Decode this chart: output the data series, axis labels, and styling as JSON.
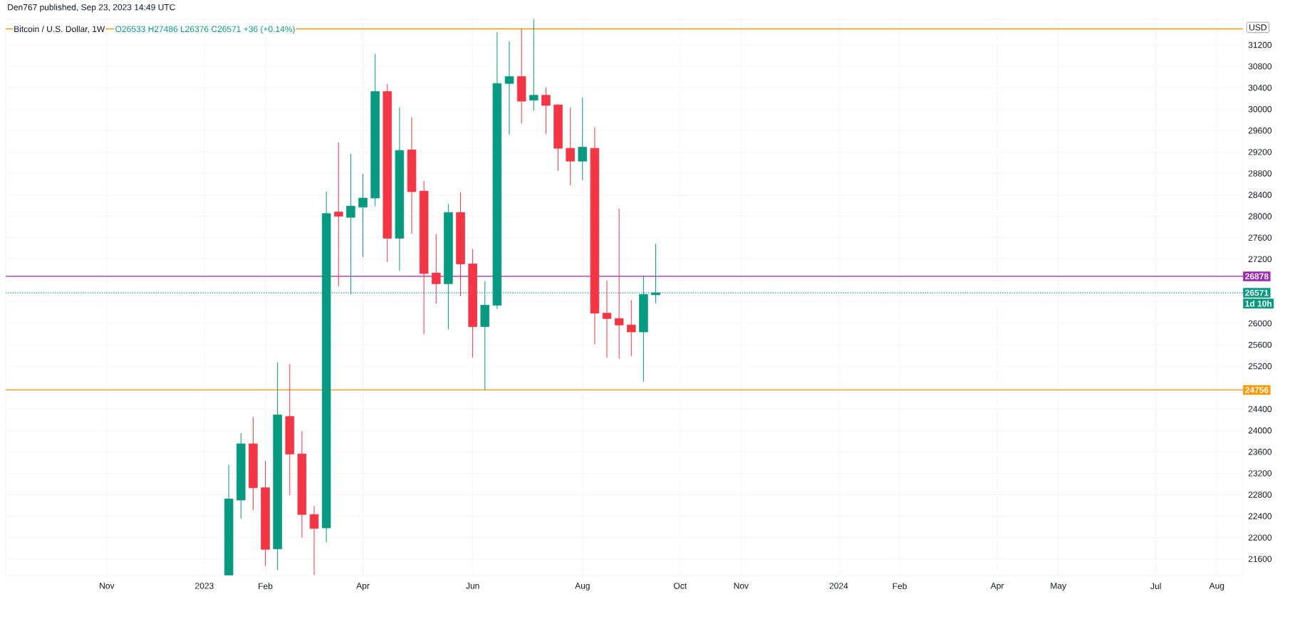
{
  "chart_data": {
    "type": "candlestick",
    "title": "Den767 published, Sep 23, 2023 14:49 UTC",
    "subtitle": "Bitcoin / U.S. Dollar, 1W",
    "ylabel": "USD",
    "annotations": [
      "O26533 H27486 L26376 C26571 +36 (+0.14%)",
      "1d 10h"
    ],
    "x": [
      "2023-01-16",
      "2023-01-23",
      "2023-01-30",
      "2023-02-06",
      "2023-02-13",
      "2023-02-20",
      "2023-02-27",
      "2023-03-06",
      "2023-03-13",
      "2023-03-20",
      "2023-03-27",
      "2023-04-03",
      "2023-04-10",
      "2023-04-17",
      "2023-04-24",
      "2023-05-01",
      "2023-05-08",
      "2023-05-15",
      "2023-05-22",
      "2023-05-29",
      "2023-06-05",
      "2023-06-12",
      "2023-06-19",
      "2023-06-26",
      "2023-07-03",
      "2023-07-10",
      "2023-07-17",
      "2023-07-24",
      "2023-07-31",
      "2023-08-07",
      "2023-08-14",
      "2023-08-21",
      "2023-08-28",
      "2023-09-04",
      "2023-09-11",
      "2023-09-18"
    ],
    "ohlc": [
      [
        21300,
        23360,
        21300,
        22720
      ],
      [
        22700,
        23950,
        22350,
        23750
      ],
      [
        23750,
        24250,
        22510,
        22930
      ],
      [
        22930,
        23430,
        21470,
        21780
      ],
      [
        21790,
        25270,
        21390,
        24290
      ],
      [
        24260,
        25240,
        22790,
        23560
      ],
      [
        23560,
        23990,
        22000,
        22430
      ],
      [
        22430,
        22590,
        21300,
        22170
      ],
      [
        22180,
        28460,
        21910,
        28050
      ],
      [
        28080,
        29380,
        26690,
        28000
      ],
      [
        27980,
        29170,
        26540,
        28190
      ],
      [
        28170,
        28790,
        27240,
        28340
      ],
      [
        28340,
        31030,
        28190,
        30330
      ],
      [
        30330,
        30470,
        27140,
        27590
      ],
      [
        27590,
        30030,
        26980,
        29230
      ],
      [
        29240,
        29850,
        27670,
        28460
      ],
      [
        28470,
        28660,
        25800,
        26930
      ],
      [
        26940,
        27670,
        26370,
        26740
      ],
      [
        26740,
        28230,
        25890,
        28070
      ],
      [
        28070,
        28450,
        26510,
        27110
      ],
      [
        27110,
        27390,
        25360,
        25940
      ],
      [
        25940,
        26790,
        24760,
        26340
      ],
      [
        26340,
        31440,
        26270,
        30480
      ],
      [
        30480,
        31270,
        29520,
        30610
      ],
      [
        30610,
        31500,
        29730,
        30150
      ],
      [
        30170,
        31680,
        29970,
        30260
      ],
      [
        30260,
        30410,
        29530,
        30070
      ],
      [
        30080,
        30090,
        28850,
        29270
      ],
      [
        29270,
        30030,
        28580,
        29030
      ],
      [
        29030,
        30220,
        28670,
        29290
      ],
      [
        29270,
        29660,
        25610,
        26190
      ],
      [
        26190,
        26800,
        25360,
        26090
      ],
      [
        26090,
        28140,
        25340,
        25970
      ],
      [
        25970,
        26430,
        25390,
        25840
      ],
      [
        25840,
        26878,
        24910,
        26540
      ],
      [
        26533,
        27486,
        26376,
        26571
      ]
    ],
    "colors": [
      "#089981",
      "#089981",
      "#f23645",
      "#f23645",
      "#089981",
      "#f23645",
      "#f23645",
      "#f23645",
      "#089981",
      "#f23645",
      "#089981",
      "#089981",
      "#089981",
      "#f23645",
      "#089981",
      "#f23645",
      "#f23645",
      "#f23645",
      "#089981",
      "#f23645",
      "#f23645",
      "#089981",
      "#089981",
      "#089981",
      "#f23645",
      "#089981",
      "#f23645",
      "#f23645",
      "#f23645",
      "#089981",
      "#f23645",
      "#f23645",
      "#f23645",
      "#f23645",
      "#089981",
      "#089981"
    ],
    "xlim": [
      "2022-09-10",
      "2024-08-20"
    ],
    "xticks": [
      {
        "value": "2022-11-07",
        "label": "Nov"
      },
      {
        "value": "2023-01-02",
        "label": "2023"
      },
      {
        "value": "2023-02-06",
        "label": "Feb"
      },
      {
        "value": "2023-04-03",
        "label": "Apr"
      },
      {
        "value": "2023-06-05",
        "label": "Jun"
      },
      {
        "value": "2023-08-07",
        "label": "Aug"
      },
      {
        "value": "2023-10-02",
        "label": "Oct"
      },
      {
        "value": "2023-11-06",
        "label": "Nov"
      },
      {
        "value": "2024-01-01",
        "label": "2024"
      },
      {
        "value": "2024-02-05",
        "label": "Feb"
      },
      {
        "value": "2024-04-01",
        "label": "Apr"
      },
      {
        "value": "2024-05-06",
        "label": "May"
      },
      {
        "value": "2024-07-01",
        "label": "Jul"
      },
      {
        "value": "2024-08-05",
        "label": "Aug"
      }
    ],
    "ylim": [
      21290,
      31680
    ],
    "yticks": [
      21600,
      22000,
      22400,
      22800,
      23200,
      23600,
      24000,
      24400,
      {
        "value": 24800,
        "label": null
      },
      25200,
      25600,
      26000,
      {
        "value": 26400,
        "label": null
      },
      {
        "value": 26800,
        "label": null
      },
      27200,
      27600,
      28000,
      28400,
      28800,
      29200,
      29600,
      30000,
      30400,
      30800,
      31200
    ],
    "ref_lines": [
      {
        "axis": "y",
        "value": 31500,
        "color": "#ff9800"
      },
      {
        "axis": "y",
        "value": 26878,
        "label": "26878",
        "color": "#9c27b0"
      },
      {
        "axis": "y",
        "value": 26571,
        "label": "26571",
        "color": "#089981",
        "line_style": "dotted"
      },
      {
        "axis": "y",
        "value": 24756,
        "label": "24756",
        "color": "#ff9800"
      }
    ],
    "grid": true
  }
}
